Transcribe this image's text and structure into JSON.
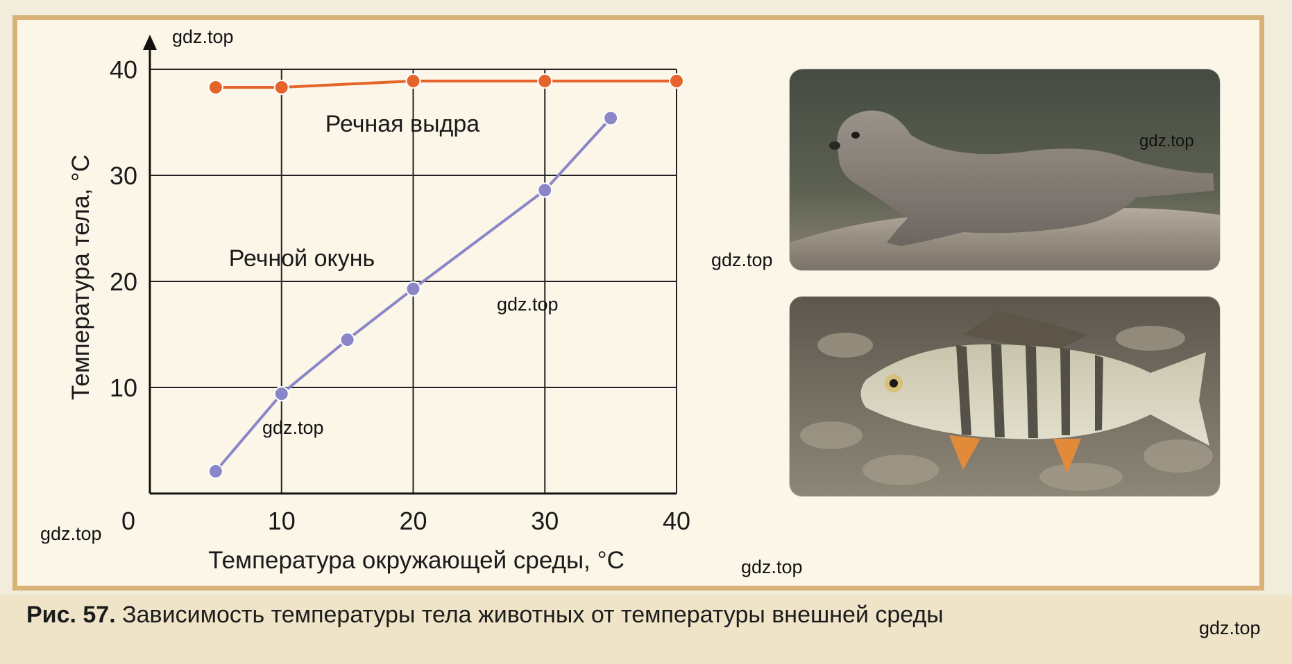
{
  "caption": {
    "number": "Рис. 57.",
    "text": " Зависимость температуры тела животных от температуры внешней среды"
  },
  "watermark": "gdz.top",
  "photos": {
    "otter": "otter-photo",
    "perch": "perch-photo"
  },
  "chart_data": {
    "type": "line",
    "title": "",
    "xlabel": "Температура окружающей среды, °С",
    "ylabel": "Температура тела, °С",
    "xlim": [
      0,
      40
    ],
    "ylim": [
      0,
      40
    ],
    "x_ticks": [
      0,
      10,
      20,
      30,
      40
    ],
    "y_ticks": [
      10,
      20,
      30,
      40
    ],
    "grid": true,
    "legend": "inline labels",
    "series": [
      {
        "name": "Речная выдра",
        "color": "#e4642a",
        "points": [
          [
            5,
            38.3
          ],
          [
            10,
            38.3
          ],
          [
            20,
            38.9
          ],
          [
            30,
            38.9
          ],
          [
            40,
            38.9
          ]
        ]
      },
      {
        "name": "Речной окунь",
        "color": "#8a86c8",
        "points": [
          [
            5,
            2.1
          ],
          [
            10,
            9.4
          ],
          [
            15,
            14.5
          ],
          [
            20,
            19.3
          ],
          [
            30,
            28.6
          ],
          [
            35,
            35.4
          ]
        ]
      }
    ]
  }
}
